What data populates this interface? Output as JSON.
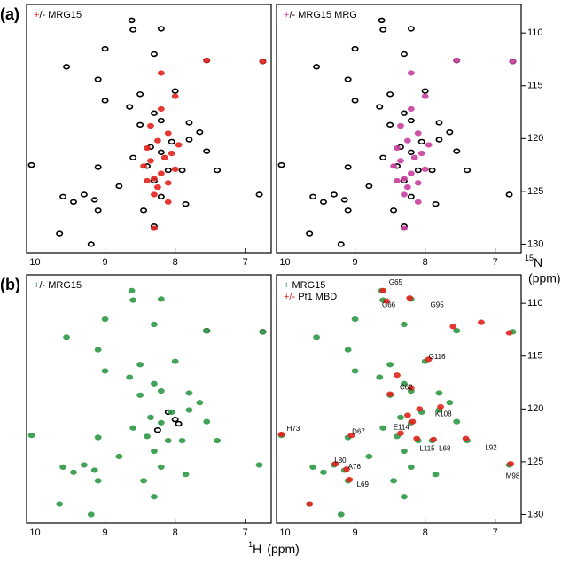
{
  "chart_data": [
    {
      "type": "scatter",
      "panel": "(a)",
      "legend": [
        {
          "mark": "+",
          "text": "/- MRG15",
          "color": "#e3241d"
        }
      ],
      "xlim": [
        10.12,
        6.63
      ],
      "ylim": [
        107.3,
        130.8
      ],
      "xticks": [
        10,
        9,
        8,
        7
      ],
      "yticks": [],
      "series": [
        {
          "color": "#000000",
          "fill": false,
          "x": [
            8.62,
            8.6,
            8.2,
            9.0,
            7.55,
            6.75,
            9.55,
            8.3,
            8.0,
            9.1,
            8.5,
            9.0,
            8.65,
            8.3,
            8.2,
            8.5,
            7.8,
            7.65,
            7.8,
            8.05,
            8.35,
            8.2,
            8.6,
            7.55,
            10.05,
            9.1,
            8.4,
            8.1,
            7.9,
            7.4,
            8.3,
            8.8,
            9.3,
            9.15,
            9.6,
            9.45,
            8.2,
            6.8,
            9.1,
            8.45,
            8.3,
            9.65,
            9.2,
            7.85
          ],
          "y": [
            108.8,
            109.7,
            109.6,
            111.5,
            112.6,
            112.7,
            113.2,
            112.0,
            115.5,
            114.4,
            115.8,
            116.4,
            117.0,
            117.6,
            118.3,
            118.7,
            118.5,
            119.4,
            120.1,
            120.3,
            120.8,
            121.3,
            121.8,
            121.2,
            122.5,
            122.7,
            122.6,
            123.0,
            123.0,
            123.0,
            124.0,
            124.5,
            125.3,
            125.8,
            125.5,
            126.0,
            125.5,
            125.3,
            126.8,
            126.8,
            128.3,
            129.0,
            130.0,
            126.2
          ]
        },
        {
          "color": "#e3241d",
          "fill": true,
          "x": [
            7.55,
            6.75,
            8.0,
            8.2,
            8.3,
            8.1,
            8.25,
            8.4,
            8.05,
            8.15,
            8.35,
            8.45,
            8.0,
            8.2,
            8.3,
            8.1,
            8.25,
            8.4,
            7.95,
            8.3,
            8.35,
            8.2,
            8.1
          ],
          "y": [
            112.6,
            112.7,
            116.0,
            113.8,
            128.5,
            119.5,
            120.2,
            120.9,
            121.4,
            121.8,
            122.1,
            122.6,
            122.9,
            123.3,
            123.8,
            124.2,
            124.6,
            124.0,
            120.6,
            125.3,
            118.8,
            117.2,
            126.0
          ]
        }
      ]
    },
    {
      "type": "scatter",
      "legend": [
        {
          "mark": "+",
          "text": "/- MRG15 MRG",
          "color": "#c9419f"
        }
      ],
      "ylabel_sup": "15",
      "ylabel": "N",
      "ylabel_unit": "(ppm)",
      "xlim": [
        10.12,
        6.63
      ],
      "ylim": [
        107.3,
        130.8
      ],
      "xticks": [
        10,
        9,
        8,
        7
      ],
      "yticks": [
        110,
        115,
        120,
        125,
        130
      ],
      "series": [
        {
          "color": "#000000",
          "fill": false,
          "x": [
            8.62,
            8.6,
            8.2,
            9.0,
            7.55,
            6.75,
            9.55,
            8.3,
            8.0,
            9.1,
            8.5,
            9.0,
            8.65,
            8.3,
            8.2,
            8.5,
            7.8,
            7.65,
            7.8,
            8.05,
            8.35,
            8.2,
            8.6,
            7.55,
            10.05,
            9.1,
            8.4,
            8.1,
            7.9,
            7.4,
            8.3,
            8.8,
            9.3,
            9.15,
            9.6,
            9.45,
            8.2,
            6.8,
            9.1,
            8.45,
            8.3,
            9.65,
            9.2,
            7.85
          ],
          "y": [
            108.8,
            109.7,
            109.6,
            111.5,
            112.6,
            112.7,
            113.2,
            112.0,
            115.5,
            114.4,
            115.8,
            116.4,
            117.0,
            117.6,
            118.3,
            118.7,
            118.5,
            119.4,
            120.1,
            120.3,
            120.8,
            121.3,
            121.8,
            121.2,
            122.5,
            122.7,
            122.6,
            123.0,
            123.0,
            123.0,
            124.0,
            124.5,
            125.3,
            125.8,
            125.5,
            126.0,
            125.5,
            125.3,
            126.8,
            126.8,
            128.3,
            129.0,
            130.0,
            126.2
          ]
        },
        {
          "color": "#c9419f",
          "fill": true,
          "x": [
            7.55,
            6.75,
            8.0,
            8.2,
            8.3,
            8.1,
            8.25,
            8.4,
            8.05,
            8.15,
            8.35,
            8.45,
            8.0,
            8.2,
            8.3,
            8.1,
            8.25,
            8.4,
            7.95,
            8.3,
            8.35,
            8.2,
            8.1
          ],
          "y": [
            112.6,
            112.7,
            116.0,
            113.8,
            128.5,
            119.5,
            120.2,
            120.9,
            121.4,
            121.8,
            122.1,
            122.6,
            122.9,
            123.3,
            123.8,
            124.2,
            124.6,
            124.0,
            120.6,
            125.3,
            118.8,
            117.2,
            126.0
          ]
        }
      ]
    },
    {
      "type": "scatter",
      "panel": "(b)",
      "legend": [
        {
          "mark": "+",
          "text": "/- MRG15",
          "color": "#2e9a47"
        }
      ],
      "xlabel_sup": "1",
      "xlabel": "H",
      "xlabel_unit": "(ppm)",
      "xlim": [
        10.12,
        6.63
      ],
      "ylim": [
        107.3,
        130.8
      ],
      "xticks": [
        10,
        9,
        8,
        7
      ],
      "yticks": [],
      "series": [
        {
          "color": "#000000",
          "fill": false,
          "x": [
            7.55,
            6.75,
            8.1,
            8.0,
            7.95,
            8.25
          ],
          "y": [
            112.6,
            112.7,
            120.3,
            121.0,
            121.4,
            122.0
          ]
        },
        {
          "color": "#2e9a47",
          "fill": true,
          "x": [
            8.62,
            8.6,
            8.2,
            9.0,
            7.55,
            6.75,
            9.55,
            8.3,
            8.0,
            9.1,
            8.5,
            9.0,
            8.65,
            8.3,
            8.2,
            8.5,
            7.8,
            7.65,
            7.8,
            8.05,
            8.35,
            8.2,
            8.6,
            7.55,
            10.05,
            9.1,
            8.4,
            8.1,
            7.9,
            7.4,
            8.3,
            8.8,
            9.3,
            9.15,
            9.6,
            9.45,
            8.2,
            6.8,
            9.1,
            8.45,
            8.3,
            9.65,
            9.2,
            7.85
          ],
          "y": [
            108.8,
            109.7,
            109.6,
            111.5,
            112.6,
            112.7,
            113.2,
            112.0,
            115.5,
            114.4,
            115.8,
            116.4,
            117.0,
            117.6,
            118.3,
            118.7,
            118.5,
            119.4,
            120.1,
            120.3,
            120.8,
            121.3,
            121.8,
            121.2,
            122.5,
            122.7,
            122.6,
            123.0,
            123.0,
            123.0,
            124.0,
            124.5,
            125.3,
            125.8,
            125.5,
            126.0,
            125.5,
            125.3,
            126.8,
            126.8,
            128.3,
            129.0,
            130.0,
            126.2
          ]
        }
      ]
    },
    {
      "type": "scatter",
      "legend": [
        {
          "mark": "+",
          "text": " MRG15",
          "color": "#2e9a47"
        },
        {
          "mark": "+/-",
          "text": " Pf1 MBD",
          "color": "#e3241d"
        }
      ],
      "xlim": [
        10.12,
        6.63
      ],
      "ylim": [
        107.3,
        130.8
      ],
      "xticks": [
        10,
        9,
        8,
        7
      ],
      "yticks": [
        110,
        115,
        120,
        125,
        130
      ],
      "series": [
        {
          "color": "#2e9a47",
          "fill": true,
          "x": [
            8.62,
            8.6,
            8.2,
            9.0,
            7.55,
            6.75,
            9.55,
            8.3,
            8.0,
            9.1,
            8.5,
            9.0,
            8.65,
            8.3,
            8.2,
            8.5,
            7.8,
            7.65,
            7.8,
            8.05,
            8.35,
            8.2,
            8.6,
            7.55,
            10.05,
            9.1,
            8.4,
            8.1,
            7.9,
            7.4,
            8.3,
            8.8,
            9.3,
            9.15,
            9.6,
            9.45,
            8.2,
            6.8,
            9.1,
            8.45,
            8.3,
            9.65,
            9.2,
            7.85
          ],
          "y": [
            108.8,
            109.7,
            109.6,
            111.5,
            112.6,
            112.7,
            113.2,
            112.0,
            115.5,
            114.4,
            115.8,
            116.4,
            117.0,
            117.6,
            118.3,
            118.7,
            118.5,
            119.4,
            120.1,
            120.3,
            120.8,
            121.3,
            121.8,
            121.2,
            122.5,
            122.7,
            122.6,
            123.0,
            123.0,
            123.0,
            124.0,
            124.5,
            125.3,
            125.8,
            125.5,
            126.0,
            125.5,
            125.3,
            126.8,
            126.8,
            128.3,
            129.0,
            130.0,
            126.2
          ]
        },
        {
          "color": "#e3241d",
          "fill": true,
          "x": [
            8.6,
            8.55,
            8.22,
            7.6,
            7.2,
            6.8,
            7.95,
            8.2,
            8.5,
            7.78,
            8.08,
            8.25,
            8.18,
            8.12,
            7.88,
            7.42,
            9.28,
            9.12,
            9.08,
            6.78,
            10.05,
            9.05,
            8.35,
            9.65,
            8.4
          ],
          "y": [
            108.8,
            109.8,
            109.5,
            112.2,
            111.8,
            112.8,
            115.3,
            118.0,
            118.6,
            119.8,
            120.0,
            120.6,
            121.2,
            122.8,
            122.9,
            122.8,
            125.2,
            125.7,
            126.7,
            125.2,
            122.4,
            122.5,
            122.3,
            129.0,
            116.8
          ]
        }
      ],
      "annotations": [
        {
          "text": "G65",
          "x": 8.42,
          "y": 108.06
        },
        {
          "text": "G66",
          "x": 8.52,
          "y": 110.2
        },
        {
          "text": "G95",
          "x": 7.83,
          "y": 110.2
        },
        {
          "text": "G116",
          "x": 7.83,
          "y": 115.1
        },
        {
          "text": "C62",
          "x": 8.27,
          "y": 118.0
        },
        {
          "text": "K108",
          "x": 7.74,
          "y": 120.5
        },
        {
          "text": "E114",
          "x": 8.34,
          "y": 121.75
        },
        {
          "text": "H73",
          "x": 9.88,
          "y": 121.9
        },
        {
          "text": "D67",
          "x": 8.95,
          "y": 122.2
        },
        {
          "text": "L115",
          "x": 7.97,
          "y": 123.8
        },
        {
          "text": "L68",
          "x": 7.72,
          "y": 123.8
        },
        {
          "text": "L92",
          "x": 7.06,
          "y": 123.7
        },
        {
          "text": "L80",
          "x": 9.21,
          "y": 124.9
        },
        {
          "text": "A76",
          "x": 9.01,
          "y": 125.5
        },
        {
          "text": "L69",
          "x": 8.89,
          "y": 127.2
        },
        {
          "text": "M98",
          "x": 6.75,
          "y": 126.4
        }
      ]
    }
  ]
}
